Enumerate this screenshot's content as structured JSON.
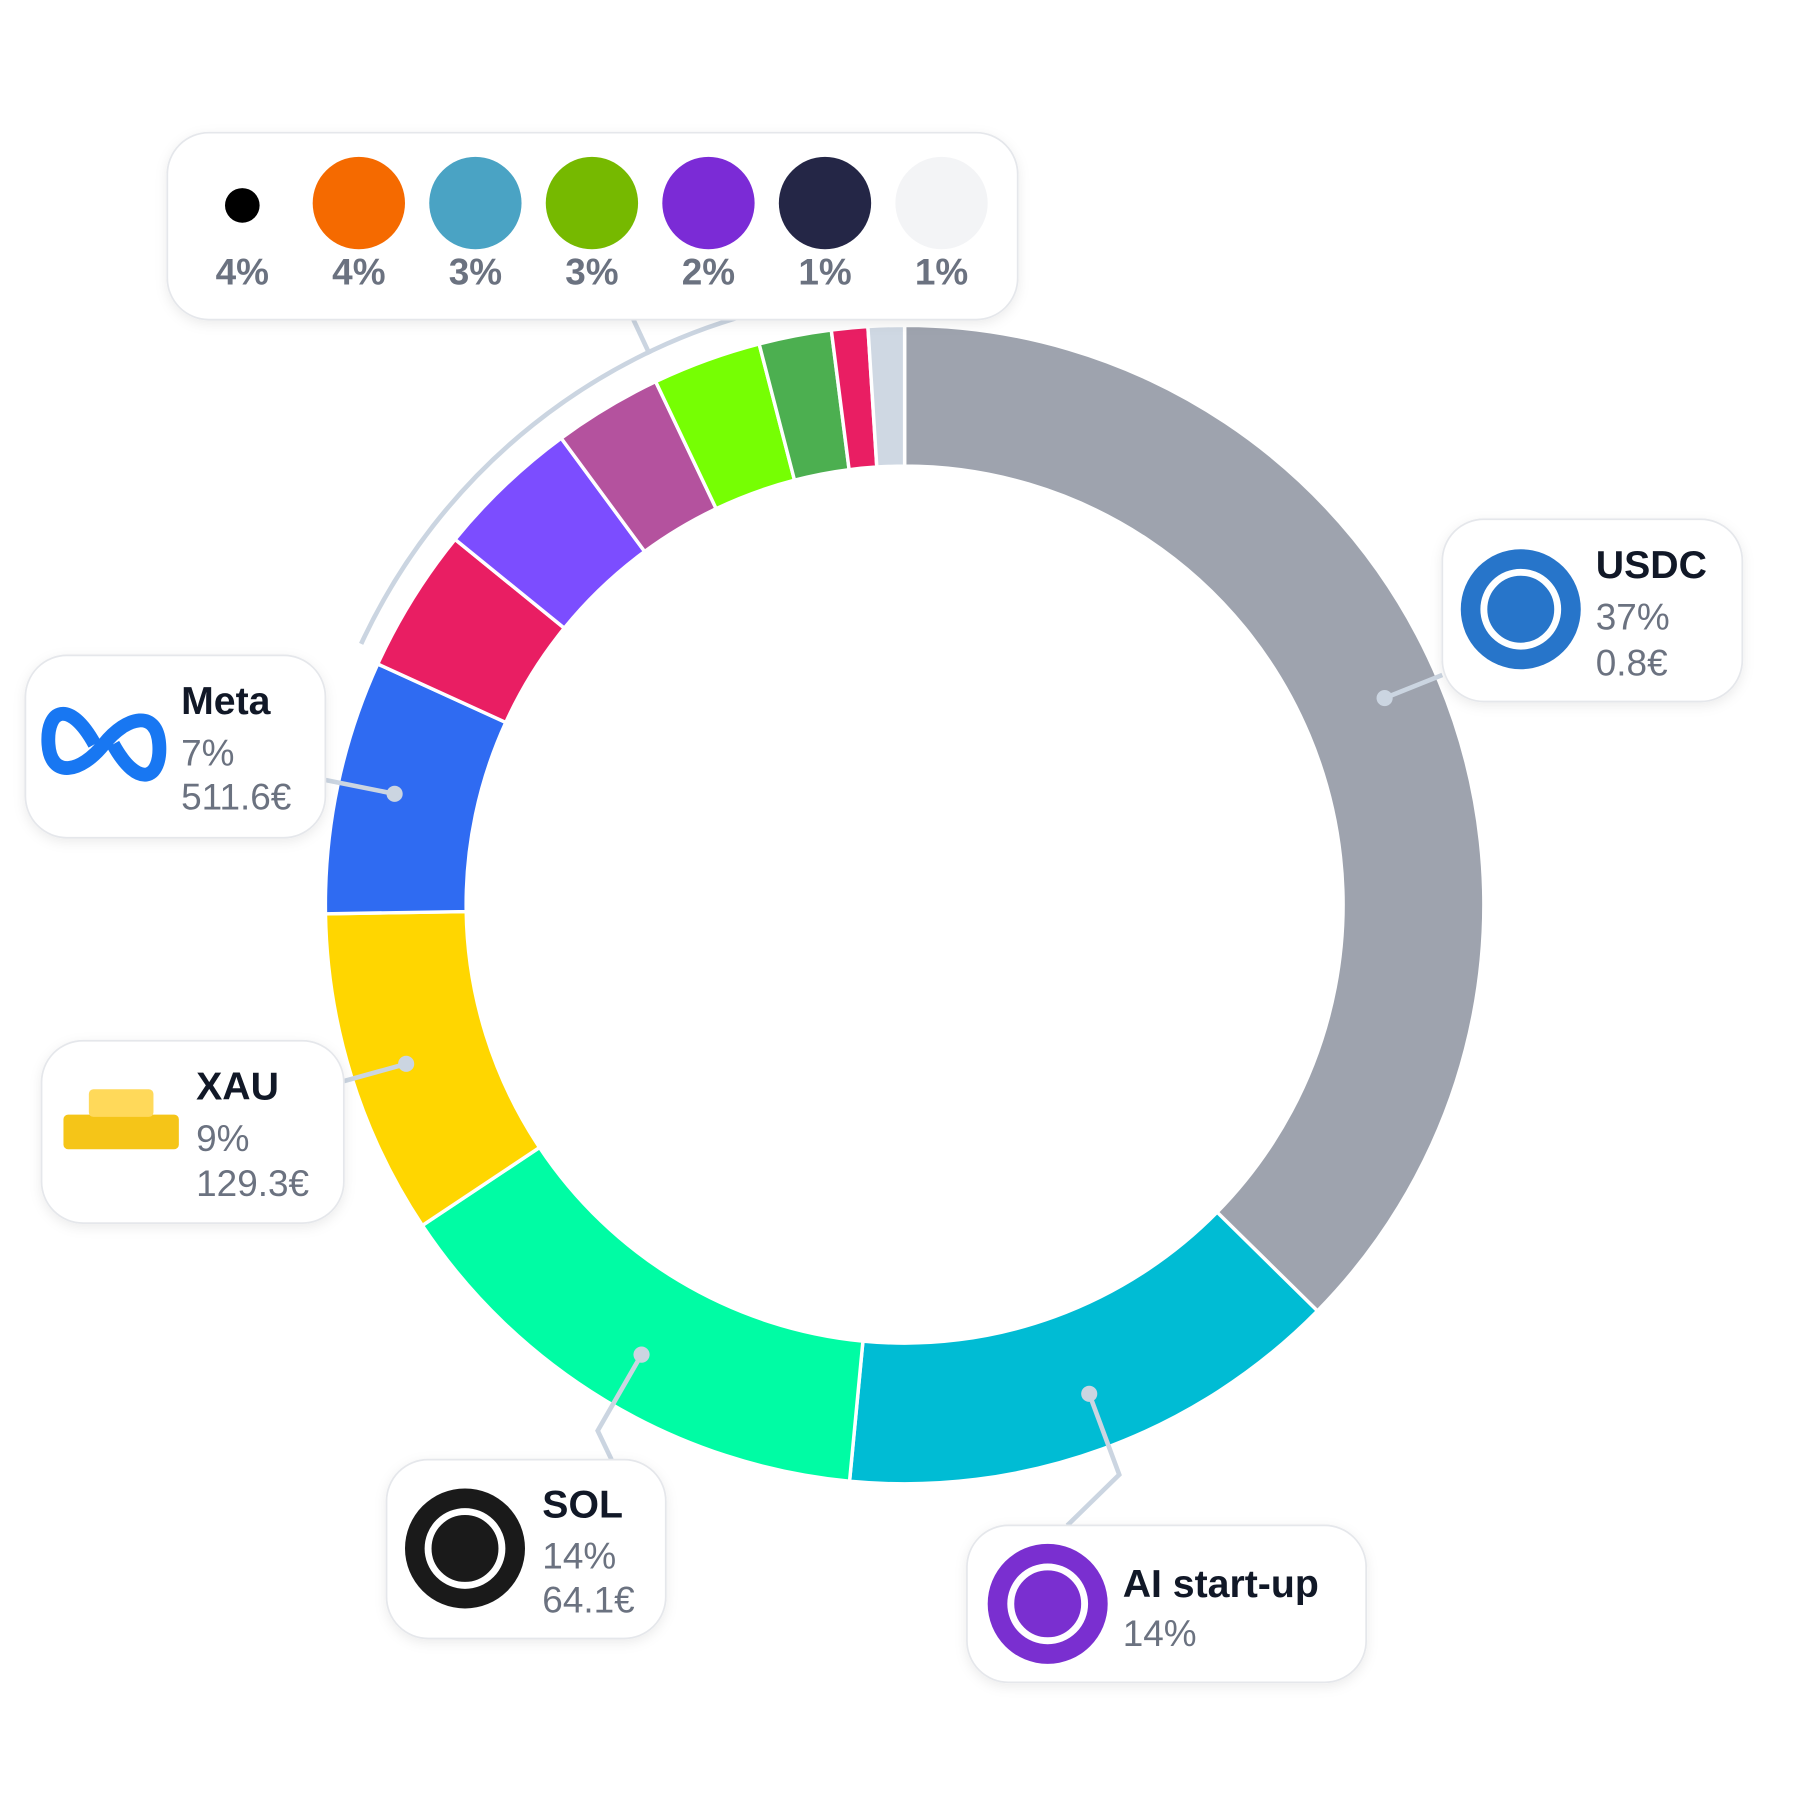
{
  "chart_data": {
    "type": "donut",
    "categories": [
      "USDC",
      "AI start-up",
      "SOL",
      "XAU",
      "Meta",
      null,
      null,
      null,
      null,
      null,
      null,
      null
    ],
    "values": [
      37,
      14,
      14,
      9,
      7,
      4,
      4,
      3,
      3,
      2,
      1,
      1
    ],
    "value_labels": [
      "37%",
      "14%",
      "14%",
      "9%",
      "7%",
      "4%",
      "4%",
      "3%",
      "3%",
      "2%",
      "1%",
      "1%"
    ],
    "amount_labels": [
      "0.8€",
      null,
      "64.1€",
      "129.3€",
      "511.6€",
      null,
      null,
      null,
      null,
      null,
      null,
      null
    ],
    "colors": [
      "#9ea3ae",
      "#00bcd4",
      "#00fca4",
      "#ffd600",
      "#2f6bf2",
      "#e91e63",
      "#7c4dff",
      "#b4529e",
      "#76ff03",
      "#4caf50",
      "#e91e63",
      "#cfd8e3"
    ]
  }
}
